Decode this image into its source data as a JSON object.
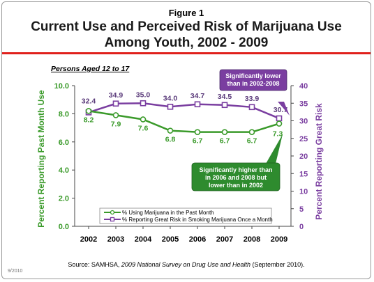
{
  "figure_label": "Figure 1",
  "title_line1": "Current Use and Perceived Risk of Marijuana Use",
  "title_line2": "Among Youth, 2002 - 2009",
  "subtitle": "Persons Aged 12 to 17",
  "source_prefix": "Source:  SAMHSA, ",
  "source_italic": "2009 National Survey on Drug Use and Health",
  "source_suffix": " (September 2010).",
  "date_stamp": "9/2010",
  "colors": {
    "green": "#3a9a2a",
    "purple": "#7a3ea0",
    "red_rule": "#e0201c"
  },
  "chart_data": {
    "type": "line",
    "categories": [
      "2002",
      "2003",
      "2004",
      "2005",
      "2006",
      "2007",
      "2008",
      "2009"
    ],
    "y_left": {
      "label": "Percent Reporting Past Month Use",
      "range": [
        0,
        10
      ],
      "ticks": [
        "0.0",
        "2.0",
        "4.0",
        "6.0",
        "8.0",
        "10.0"
      ]
    },
    "y_right": {
      "label": "Percent Reporting Great Risk",
      "range": [
        0,
        40
      ],
      "ticks": [
        "0",
        "5",
        "10",
        "15",
        "20",
        "25",
        "30",
        "35",
        "40"
      ]
    },
    "series": [
      {
        "name": "% Using Marijuana in the Past Month",
        "axis": "left",
        "color": "#3a9a2a",
        "values": [
          8.2,
          7.9,
          7.6,
          6.8,
          6.7,
          6.7,
          6.7,
          7.3
        ],
        "labels": [
          "8.2",
          "7.9",
          "7.6",
          "6.8",
          "6.7",
          "6.7",
          "6.7",
          "7.3"
        ]
      },
      {
        "name": "% Reporting Great Risk in Smoking Marijuana Once a Month",
        "axis": "right",
        "color": "#7a3ea0",
        "values": [
          32.4,
          34.9,
          35.0,
          34.0,
          34.7,
          34.5,
          33.9,
          30.7
        ],
        "labels": [
          "32.4",
          "34.9",
          "35.0",
          "34.0",
          "34.7",
          "34.5",
          "33.9",
          "30.7"
        ]
      }
    ],
    "annotations": [
      {
        "lines": [
          "Significantly lower",
          "than in 2002-2008"
        ],
        "color": "#7a3ea0"
      },
      {
        "lines": [
          "Significantly higher than",
          "in 2006 and 2008 but",
          "lower than in 2002"
        ],
        "color": "#2e8b2e"
      }
    ],
    "legend_position": "bottom"
  }
}
